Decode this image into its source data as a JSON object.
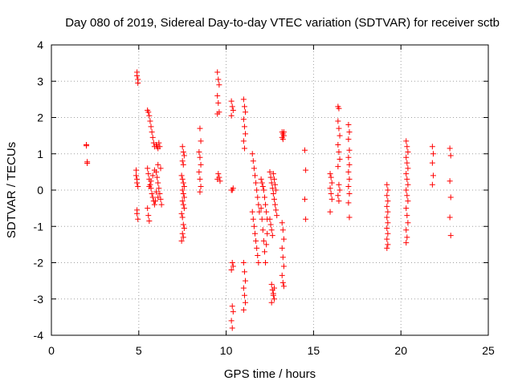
{
  "chart_data": {
    "type": "scatter",
    "title": "Day 080 of 2019, Sidereal Day-to-day VTEC variation (SDTVAR) for receiver sctb",
    "xlabel": "GPS time / hours",
    "ylabel": "SDTVAR / TECUs",
    "xlim": [
      0,
      25
    ],
    "ylim": [
      -4,
      4
    ],
    "xticks": [
      0,
      5,
      10,
      15,
      20,
      25
    ],
    "yticks": [
      -4,
      -3,
      -2,
      -1,
      0,
      1,
      2,
      3,
      4
    ],
    "grid": true,
    "marker": "+",
    "color": "#ff0000",
    "series": [
      {
        "name": "SDTVAR",
        "points": [
          [
            2.0,
            1.25
          ],
          [
            2.0,
            1.22
          ],
          [
            2.05,
            0.78
          ],
          [
            2.05,
            0.74
          ],
          [
            4.9,
            3.25
          ],
          [
            4.9,
            3.15
          ],
          [
            4.95,
            3.05
          ],
          [
            4.95,
            2.95
          ],
          [
            4.85,
            0.55
          ],
          [
            4.85,
            0.4
          ],
          [
            4.9,
            0.3
          ],
          [
            4.9,
            0.2
          ],
          [
            4.95,
            0.1
          ],
          [
            4.9,
            -0.55
          ],
          [
            4.9,
            -0.65
          ],
          [
            4.95,
            -0.8
          ],
          [
            5.5,
            2.2
          ],
          [
            5.55,
            2.15
          ],
          [
            5.6,
            2.05
          ],
          [
            5.65,
            1.9
          ],
          [
            5.7,
            1.75
          ],
          [
            5.75,
            1.6
          ],
          [
            5.8,
            1.45
          ],
          [
            5.85,
            1.3
          ],
          [
            5.9,
            1.2
          ],
          [
            6.0,
            1.25
          ],
          [
            6.05,
            1.2
          ],
          [
            6.1,
            1.15
          ],
          [
            6.15,
            1.3
          ],
          [
            6.2,
            1.2
          ],
          [
            5.5,
            0.6
          ],
          [
            5.55,
            0.45
          ],
          [
            5.6,
            0.3
          ],
          [
            5.65,
            0.15
          ],
          [
            5.7,
            0.05
          ],
          [
            5.75,
            -0.1
          ],
          [
            5.8,
            -0.2
          ],
          [
            5.85,
            -0.3
          ],
          [
            5.9,
            -0.4
          ],
          [
            5.95,
            -0.3
          ],
          [
            6.0,
            0.5
          ],
          [
            6.05,
            0.35
          ],
          [
            6.1,
            0.2
          ],
          [
            6.15,
            0.05
          ],
          [
            6.2,
            -0.1
          ],
          [
            6.25,
            -0.25
          ],
          [
            6.3,
            -0.4
          ],
          [
            6.25,
            0.6
          ],
          [
            6.1,
            0.7
          ],
          [
            5.5,
            -0.5
          ],
          [
            5.55,
            -0.7
          ],
          [
            5.6,
            -0.85
          ],
          [
            5.6,
            0.1
          ],
          [
            5.7,
            0.25
          ],
          [
            5.8,
            0.4
          ],
          [
            5.9,
            0.55
          ],
          [
            6.0,
            -0.05
          ],
          [
            6.1,
            -0.2
          ],
          [
            7.5,
            1.2
          ],
          [
            7.55,
            1.05
          ],
          [
            7.6,
            0.95
          ],
          [
            7.5,
            0.8
          ],
          [
            7.55,
            0.7
          ],
          [
            7.45,
            0.4
          ],
          [
            7.5,
            0.3
          ],
          [
            7.55,
            0.2
          ],
          [
            7.6,
            0.1
          ],
          [
            7.5,
            0.0
          ],
          [
            7.55,
            -0.1
          ],
          [
            7.6,
            -0.2
          ],
          [
            7.5,
            -0.3
          ],
          [
            7.55,
            -0.4
          ],
          [
            7.6,
            -0.5
          ],
          [
            7.45,
            -0.65
          ],
          [
            7.5,
            -0.75
          ],
          [
            7.55,
            -0.95
          ],
          [
            7.6,
            -1.05
          ],
          [
            7.5,
            -1.2
          ],
          [
            7.55,
            -1.3
          ],
          [
            7.45,
            -1.4
          ],
          [
            8.5,
            1.7
          ],
          [
            8.55,
            1.35
          ],
          [
            8.45,
            1.05
          ],
          [
            8.5,
            0.9
          ],
          [
            8.55,
            0.7
          ],
          [
            8.45,
            0.5
          ],
          [
            8.5,
            0.3
          ],
          [
            8.55,
            0.1
          ],
          [
            8.5,
            -0.05
          ],
          [
            9.5,
            3.25
          ],
          [
            9.55,
            3.05
          ],
          [
            9.6,
            2.9
          ],
          [
            9.5,
            2.6
          ],
          [
            9.55,
            2.4
          ],
          [
            9.6,
            2.15
          ],
          [
            9.5,
            2.1
          ],
          [
            9.55,
            0.45
          ],
          [
            9.6,
            0.35
          ],
          [
            9.5,
            0.3
          ],
          [
            9.65,
            0.25
          ],
          [
            10.3,
            2.45
          ],
          [
            10.35,
            2.3
          ],
          [
            10.4,
            2.2
          ],
          [
            10.3,
            2.05
          ],
          [
            10.35,
            -0.0
          ],
          [
            10.4,
            0.05
          ],
          [
            10.3,
            0.0
          ],
          [
            10.35,
            -2.0
          ],
          [
            10.4,
            -2.1
          ],
          [
            10.3,
            -2.2
          ],
          [
            10.35,
            -3.2
          ],
          [
            10.4,
            -3.35
          ],
          [
            10.3,
            -3.6
          ],
          [
            10.35,
            -3.8
          ],
          [
            11.0,
            2.5
          ],
          [
            11.05,
            2.3
          ],
          [
            11.1,
            2.15
          ],
          [
            11.0,
            1.95
          ],
          [
            11.05,
            1.75
          ],
          [
            11.1,
            1.55
          ],
          [
            11.0,
            1.35
          ],
          [
            11.05,
            1.15
          ],
          [
            11.0,
            -2.0
          ],
          [
            11.05,
            -2.25
          ],
          [
            11.1,
            -2.5
          ],
          [
            11.0,
            -2.7
          ],
          [
            11.05,
            -2.9
          ],
          [
            11.1,
            -3.1
          ],
          [
            11.0,
            -3.3
          ],
          [
            11.5,
            1.0
          ],
          [
            11.55,
            0.8
          ],
          [
            11.6,
            0.6
          ],
          [
            11.65,
            0.4
          ],
          [
            11.7,
            0.2
          ],
          [
            11.75,
            0.0
          ],
          [
            11.8,
            -0.2
          ],
          [
            11.85,
            -0.4
          ],
          [
            11.9,
            -0.6
          ],
          [
            11.5,
            -0.6
          ],
          [
            11.55,
            -0.8
          ],
          [
            11.6,
            -1.0
          ],
          [
            11.65,
            -1.2
          ],
          [
            11.7,
            -1.4
          ],
          [
            11.75,
            -1.6
          ],
          [
            11.8,
            -1.8
          ],
          [
            11.85,
            -2.0
          ],
          [
            12.0,
            -0.5
          ],
          [
            12.05,
            -0.8
          ],
          [
            12.1,
            -1.1
          ],
          [
            12.15,
            -1.4
          ],
          [
            12.2,
            -1.7
          ],
          [
            12.25,
            -2.0
          ],
          [
            12.3,
            -1.5
          ],
          [
            12.35,
            -1.2
          ],
          [
            12.0,
            0.3
          ],
          [
            12.05,
            0.2
          ],
          [
            12.1,
            0.1
          ],
          [
            12.15,
            0.0
          ],
          [
            12.2,
            -0.2
          ],
          [
            12.25,
            -0.4
          ],
          [
            12.3,
            -0.6
          ],
          [
            12.35,
            -0.8
          ],
          [
            12.5,
            0.5
          ],
          [
            12.55,
            0.35
          ],
          [
            12.6,
            0.2
          ],
          [
            12.65,
            0.05
          ],
          [
            12.7,
            -0.1
          ],
          [
            12.75,
            -0.25
          ],
          [
            12.8,
            -0.4
          ],
          [
            12.85,
            -0.55
          ],
          [
            12.9,
            -0.7
          ],
          [
            12.5,
            -0.8
          ],
          [
            12.55,
            -0.95
          ],
          [
            12.6,
            -1.1
          ],
          [
            12.65,
            -1.25
          ],
          [
            12.7,
            0.45
          ],
          [
            12.75,
            0.3
          ],
          [
            12.8,
            0.15
          ],
          [
            12.85,
            0.0
          ],
          [
            12.6,
            -2.6
          ],
          [
            12.65,
            -2.75
          ],
          [
            12.7,
            -2.9
          ],
          [
            12.75,
            -3.0
          ],
          [
            12.6,
            -3.1
          ],
          [
            12.7,
            -2.85
          ],
          [
            12.75,
            -2.7
          ],
          [
            13.2,
            1.6
          ],
          [
            13.25,
            1.55
          ],
          [
            13.3,
            1.5
          ],
          [
            13.2,
            1.45
          ],
          [
            13.25,
            1.4
          ],
          [
            13.3,
            1.6
          ],
          [
            13.2,
            -0.9
          ],
          [
            13.25,
            -1.1
          ],
          [
            13.3,
            -1.35
          ],
          [
            13.2,
            -1.6
          ],
          [
            13.25,
            -1.85
          ],
          [
            13.3,
            -2.1
          ],
          [
            13.2,
            -2.35
          ],
          [
            13.25,
            -2.55
          ],
          [
            13.3,
            -2.65
          ],
          [
            14.5,
            1.1
          ],
          [
            14.55,
            0.55
          ],
          [
            14.5,
            -0.25
          ],
          [
            14.55,
            -0.8
          ],
          [
            15.95,
            0.45
          ],
          [
            16.0,
            0.35
          ],
          [
            16.05,
            0.2
          ],
          [
            15.95,
            0.05
          ],
          [
            16.0,
            -0.1
          ],
          [
            16.05,
            -0.25
          ],
          [
            15.95,
            -0.6
          ],
          [
            16.4,
            2.3
          ],
          [
            16.45,
            2.25
          ],
          [
            16.4,
            1.9
          ],
          [
            16.45,
            1.7
          ],
          [
            16.5,
            1.5
          ],
          [
            16.4,
            1.25
          ],
          [
            16.45,
            1.05
          ],
          [
            16.5,
            0.85
          ],
          [
            16.4,
            0.65
          ],
          [
            16.45,
            0.15
          ],
          [
            16.5,
            0.0
          ],
          [
            16.4,
            -0.15
          ],
          [
            16.45,
            -0.3
          ],
          [
            17.0,
            1.8
          ],
          [
            17.05,
            1.6
          ],
          [
            17.0,
            1.4
          ],
          [
            17.05,
            1.1
          ],
          [
            17.0,
            0.9
          ],
          [
            17.05,
            0.7
          ],
          [
            17.0,
            0.5
          ],
          [
            17.05,
            0.3
          ],
          [
            17.0,
            0.1
          ],
          [
            17.05,
            -0.1
          ],
          [
            17.0,
            -0.35
          ],
          [
            17.05,
            -0.75
          ],
          [
            19.2,
            0.15
          ],
          [
            19.25,
            0.0
          ],
          [
            19.2,
            -0.15
          ],
          [
            19.25,
            -0.3
          ],
          [
            19.2,
            -0.45
          ],
          [
            19.25,
            -0.6
          ],
          [
            19.2,
            -0.75
          ],
          [
            19.25,
            -0.9
          ],
          [
            19.2,
            -1.05
          ],
          [
            19.25,
            -1.2
          ],
          [
            19.2,
            -1.35
          ],
          [
            19.25,
            -1.5
          ],
          [
            19.2,
            -1.6
          ],
          [
            20.3,
            1.35
          ],
          [
            20.35,
            1.2
          ],
          [
            20.4,
            1.05
          ],
          [
            20.3,
            0.9
          ],
          [
            20.35,
            0.75
          ],
          [
            20.4,
            0.6
          ],
          [
            20.3,
            0.45
          ],
          [
            20.35,
            0.3
          ],
          [
            20.4,
            0.15
          ],
          [
            20.3,
            0.0
          ],
          [
            20.35,
            -0.15
          ],
          [
            20.4,
            -0.3
          ],
          [
            20.3,
            -0.5
          ],
          [
            20.35,
            -0.7
          ],
          [
            20.4,
            -0.9
          ],
          [
            20.3,
            -1.1
          ],
          [
            20.35,
            -1.3
          ],
          [
            20.3,
            -1.45
          ],
          [
            21.8,
            1.2
          ],
          [
            21.85,
            1.0
          ],
          [
            21.8,
            0.75
          ],
          [
            21.85,
            0.4
          ],
          [
            21.8,
            0.15
          ],
          [
            22.8,
            1.15
          ],
          [
            22.85,
            0.95
          ],
          [
            22.8,
            0.25
          ],
          [
            22.85,
            -0.2
          ],
          [
            22.8,
            -0.75
          ],
          [
            22.85,
            -1.25
          ]
        ]
      }
    ]
  }
}
